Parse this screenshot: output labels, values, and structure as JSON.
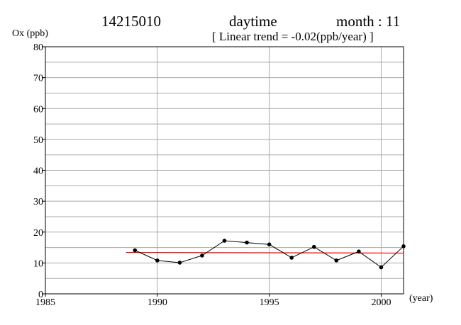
{
  "header": {
    "station": "14215010",
    "period": "daytime",
    "month": "month : 11",
    "trend_text": "[ Linear trend = -0.02(ppb/year) ]"
  },
  "chart_data": {
    "type": "line",
    "ylabel": "Ox (ppb)",
    "xunit": "(year)",
    "xlim": [
      1985,
      2001
    ],
    "ylim": [
      0,
      80
    ],
    "x_ticks": [
      1985,
      1990,
      1995,
      2000
    ],
    "y_ticks": [
      0,
      10,
      20,
      30,
      40,
      50,
      60,
      70,
      80
    ],
    "grid": true,
    "series": [
      {
        "x": [
          1989,
          1990,
          1991,
          1992,
          1993,
          1994,
          1995,
          1996,
          1997,
          1998,
          1999,
          2000,
          2001
        ],
        "values": [
          14.1,
          10.8,
          10.1,
          12.4,
          17.2,
          16.6,
          16.0,
          11.7,
          15.2,
          10.8,
          13.7,
          8.6,
          15.4
        ],
        "color": "#000000"
      }
    ],
    "trend_line": {
      "x": [
        1988.6,
        2001
      ],
      "values": [
        13.4,
        13.2
      ],
      "color": "#ff0000"
    }
  }
}
